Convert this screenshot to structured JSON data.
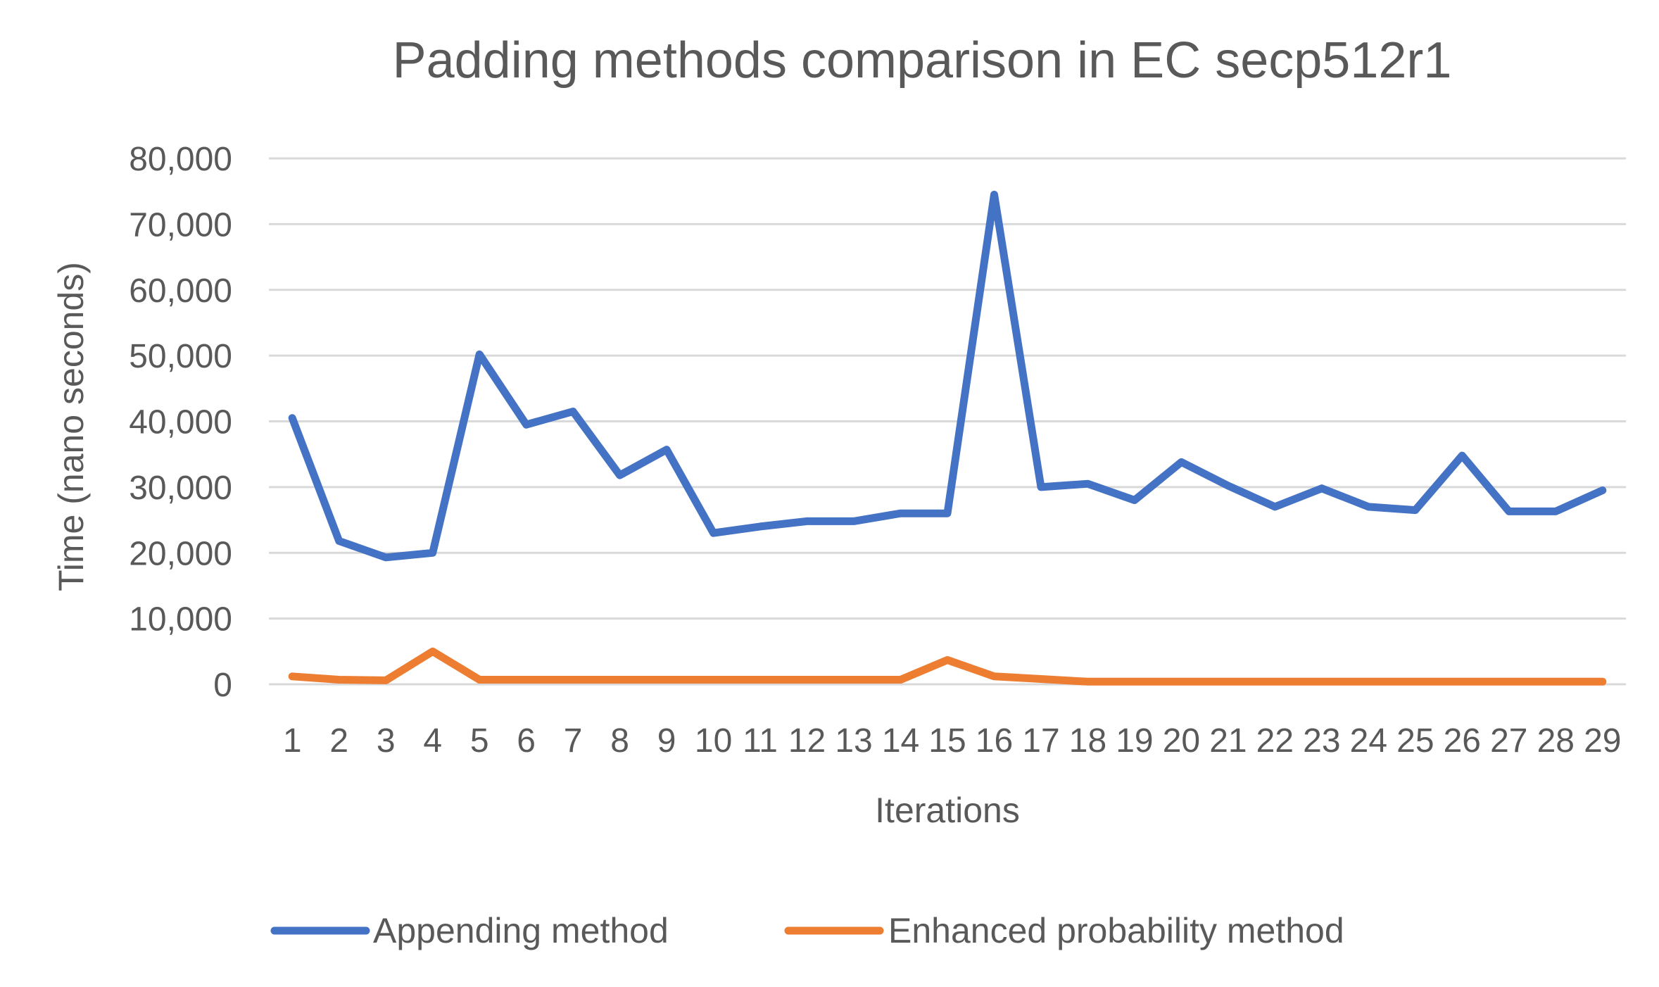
{
  "chart_data": {
    "type": "line",
    "title": "Padding methods comparison in EC secp512r1",
    "xlabel": "Iterations",
    "ylabel": "Time (nano seconds)",
    "ylim": [
      0,
      80000
    ],
    "y_ticks": [
      0,
      10000,
      20000,
      30000,
      40000,
      50000,
      60000,
      70000,
      80000
    ],
    "y_tick_labels": [
      "0",
      "10,000",
      "20,000",
      "30,000",
      "40,000",
      "50,000",
      "60,000",
      "70,000",
      "80,000"
    ],
    "categories": [
      "1",
      "2",
      "3",
      "4",
      "5",
      "6",
      "7",
      "8",
      "9",
      "10",
      "11",
      "12",
      "13",
      "14",
      "15",
      "16",
      "17",
      "18",
      "19",
      "20",
      "21",
      "22",
      "23",
      "24",
      "25",
      "26",
      "27",
      "28",
      "29"
    ],
    "grid": true,
    "legend_position": "bottom",
    "series": [
      {
        "name": "Appending method",
        "color": "#4472C4",
        "values": [
          40500,
          21800,
          19300,
          20000,
          50200,
          39500,
          41500,
          31800,
          35700,
          23000,
          24000,
          24800,
          24800,
          26000,
          26000,
          74500,
          30000,
          30500,
          28000,
          33800,
          30200,
          27000,
          29800,
          27000,
          26500,
          34800,
          26300,
          26300,
          29500
        ]
      },
      {
        "name": "Enhanced probability method",
        "color": "#ED7D31",
        "values": [
          1200,
          700,
          600,
          5000,
          700,
          700,
          700,
          700,
          700,
          700,
          700,
          700,
          700,
          700,
          3700,
          1200,
          800,
          400,
          400,
          400,
          400,
          400,
          400,
          400,
          400,
          400,
          400,
          400,
          400
        ]
      }
    ]
  }
}
